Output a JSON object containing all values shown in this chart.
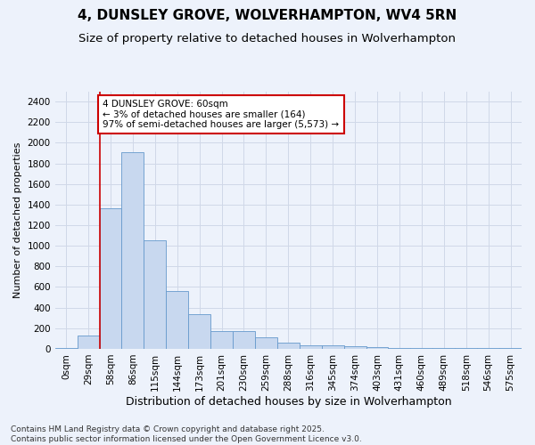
{
  "title1": "4, DUNSLEY GROVE, WOLVERHAMPTON, WV4 5RN",
  "title2": "Size of property relative to detached houses in Wolverhampton",
  "xlabel": "Distribution of detached houses by size in Wolverhampton",
  "ylabel": "Number of detached properties",
  "bar_values": [
    10,
    125,
    1360,
    1910,
    1055,
    560,
    335,
    170,
    170,
    110,
    60,
    35,
    30,
    25,
    15,
    5,
    5,
    5,
    5,
    5,
    10
  ],
  "bin_labels": [
    "0sqm",
    "29sqm",
    "58sqm",
    "86sqm",
    "115sqm",
    "144sqm",
    "173sqm",
    "201sqm",
    "230sqm",
    "259sqm",
    "288sqm",
    "316sqm",
    "345sqm",
    "374sqm",
    "403sqm",
    "431sqm",
    "460sqm",
    "489sqm",
    "518sqm",
    "546sqm",
    "575sqm"
  ],
  "bar_color": "#c8d8ef",
  "bar_edge_color": "#6699cc",
  "annotation_text": "4 DUNSLEY GROVE: 60sqm\n← 3% of detached houses are smaller (164)\n97% of semi-detached houses are larger (5,573) →",
  "annotation_box_color": "#ffffff",
  "annotation_box_edge_color": "#cc0000",
  "vline_color": "#cc0000",
  "vline_x_index": 2,
  "ylim": [
    0,
    2500
  ],
  "yticks": [
    0,
    200,
    400,
    600,
    800,
    1000,
    1200,
    1400,
    1600,
    1800,
    2000,
    2200,
    2400
  ],
  "footer": "Contains HM Land Registry data © Crown copyright and database right 2025.\nContains public sector information licensed under the Open Government Licence v3.0.",
  "grid_color": "#d0d8e8",
  "background_color": "#edf2fb",
  "title1_fontsize": 11,
  "title2_fontsize": 9.5,
  "xlabel_fontsize": 9,
  "ylabel_fontsize": 8,
  "tick_fontsize": 7.5,
  "annotation_fontsize": 7.5,
  "footer_fontsize": 6.5
}
